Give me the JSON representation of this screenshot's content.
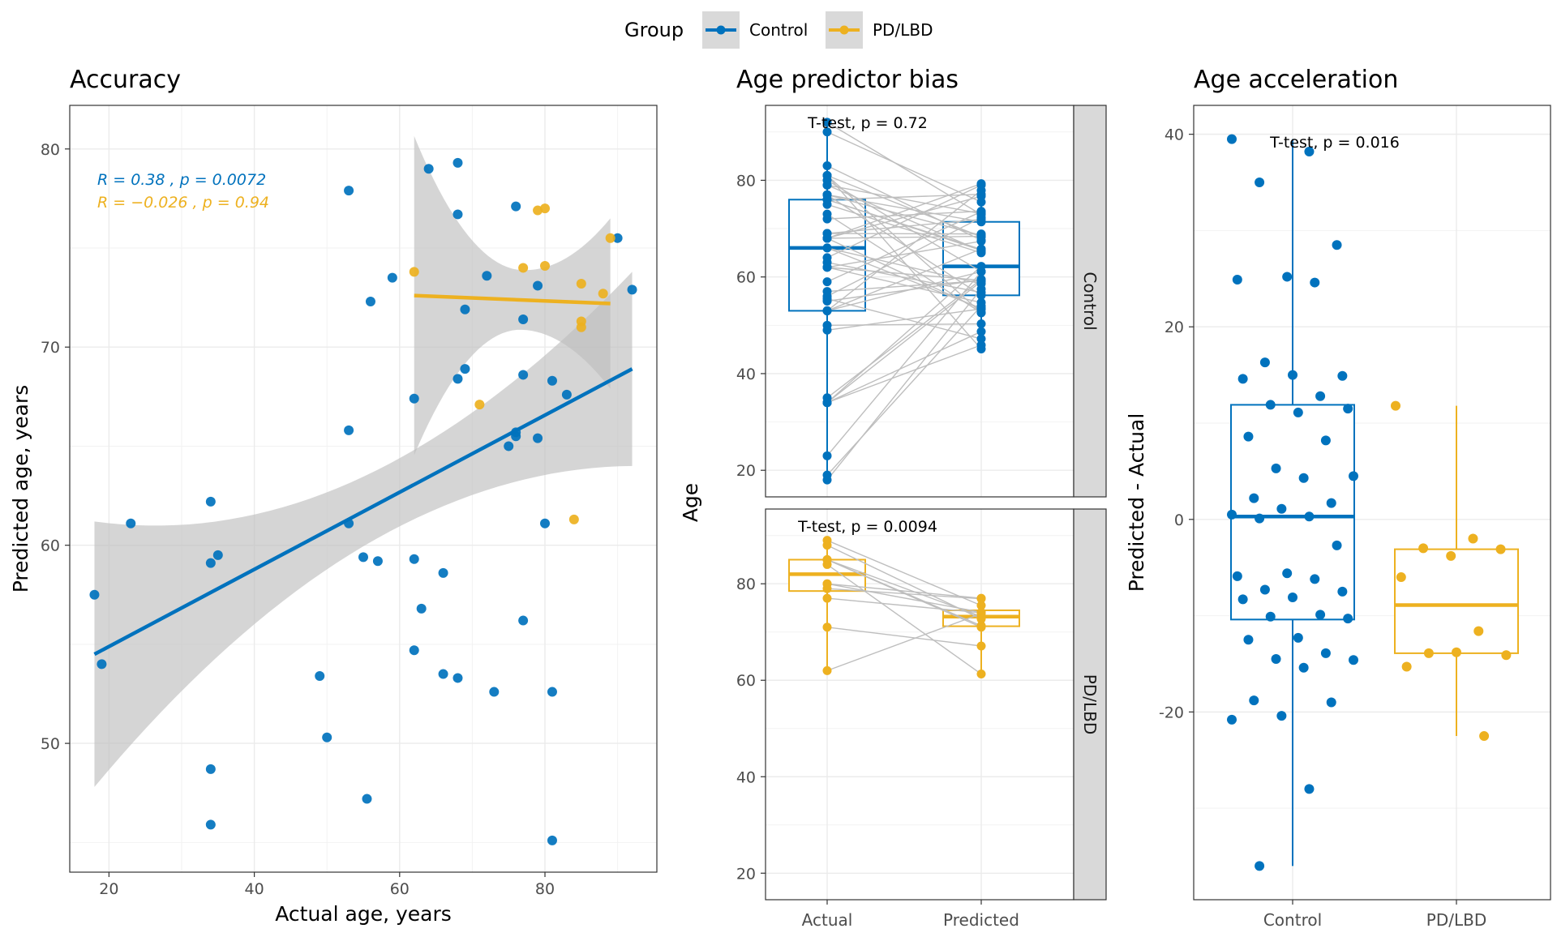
{
  "legend": {
    "title": "Group",
    "items": [
      {
        "label": "Control",
        "color": "#0072BD"
      },
      {
        "label": "PD/LBD",
        "color": "#EDB120"
      }
    ]
  },
  "colors": {
    "control": "#0072BD",
    "pd": "#EDB120",
    "strip": "#D9D9D9",
    "ribbon": "#BEBEBE",
    "pairline": "#BEBEBE"
  },
  "chart_data": [
    {
      "type": "scatter",
      "title": "Accuracy",
      "xlabel": "Actual age, years",
      "ylabel": "Predicted age, years",
      "xlim": [
        14.6,
        95.4
      ],
      "ylim": [
        43.5,
        82.2
      ],
      "xticks": [
        20,
        40,
        60,
        80
      ],
      "yticks": [
        50,
        60,
        70,
        80
      ],
      "grid": true,
      "annotations": [
        {
          "text": "R = 0.38 , p = 0.0072",
          "series": "Control"
        },
        {
          "text": "R = −0.026 , p = 0.94",
          "series": "PD/LBD"
        }
      ],
      "series": [
        {
          "name": "Control",
          "points": [
            [
              18,
              57.5
            ],
            [
              19,
              54
            ],
            [
              23,
              61.1
            ],
            [
              34,
              62.2
            ],
            [
              34,
              59.1
            ],
            [
              35,
              59.5
            ],
            [
              34,
              48.7
            ],
            [
              34,
              45.9
            ],
            [
              49,
              53.4
            ],
            [
              50,
              50.3
            ],
            [
              53,
              77.9
            ],
            [
              53,
              65.8
            ],
            [
              53,
              61.1
            ],
            [
              55,
              59.4
            ],
            [
              55.5,
              47.2
            ],
            [
              56,
              72.3
            ],
            [
              57,
              59.2
            ],
            [
              59,
              73.5
            ],
            [
              62,
              67.4
            ],
            [
              62,
              59.3
            ],
            [
              62,
              54.7
            ],
            [
              63,
              56.8
            ],
            [
              64,
              79
            ],
            [
              66,
              58.6
            ],
            [
              66,
              53.5
            ],
            [
              68,
              79.3
            ],
            [
              68,
              76.7
            ],
            [
              68,
              68.4
            ],
            [
              68,
              53.3
            ],
            [
              69,
              71.9
            ],
            [
              69,
              68.9
            ],
            [
              72,
              73.6
            ],
            [
              73,
              52.6
            ],
            [
              75,
              65
            ],
            [
              76,
              65.7
            ],
            [
              76,
              65.5
            ],
            [
              76,
              77.1
            ],
            [
              77,
              71.4
            ],
            [
              77,
              68.6
            ],
            [
              77,
              56.2
            ],
            [
              79,
              73.1
            ],
            [
              79,
              65.4
            ],
            [
              80,
              61.1
            ],
            [
              81,
              68.3
            ],
            [
              81,
              52.6
            ],
            [
              81,
              45.1
            ],
            [
              83,
              67.6
            ],
            [
              90,
              75.5
            ],
            [
              92,
              72.9
            ]
          ],
          "fit": {
            "x": [
              18,
              92
            ],
            "y": [
              54.5,
              68.9
            ],
            "ribbon_lo": [
              47.8,
              64.0
            ],
            "ribbon_hi": [
              61.2,
              73.8
            ]
          }
        },
        {
          "name": "PD/LBD",
          "points": [
            [
              62,
              73.8
            ],
            [
              71,
              67.1
            ],
            [
              77,
              74
            ],
            [
              79,
              76.9
            ],
            [
              80,
              77
            ],
            [
              80,
              74.1
            ],
            [
              84,
              61.3
            ],
            [
              85,
              73.2
            ],
            [
              85,
              71.3
            ],
            [
              85,
              71
            ],
            [
              88,
              72.7
            ],
            [
              89,
              75.5
            ]
          ],
          "fit": {
            "x": [
              62,
              89
            ],
            "y": [
              72.6,
              72.2
            ],
            "ribbon_lo": [
              64.5,
              68.1
            ],
            "ribbon_hi": [
              80.6,
              76.7
            ]
          }
        }
      ]
    },
    {
      "type": "box",
      "title": "Age predictor bias",
      "ylabel": "Age",
      "categories": [
        "Actual",
        "Predicted"
      ],
      "yticks": [
        20,
        40,
        60,
        80
      ],
      "ylim": [
        14.5,
        95.5
      ],
      "facets": [
        {
          "name": "Control",
          "label": "T-test, p = 0.72",
          "boxes": [
            {
              "category": "Actual",
              "min": 18,
              "q1": 53,
              "median": 66,
              "q3": 76,
              "max": 92
            },
            {
              "category": "Predicted",
              "min": 45,
              "q1": 56.2,
              "median": 62.2,
              "q3": 71.4,
              "max": 79.3
            }
          ],
          "pairs": [
            [
              18,
              57.5
            ],
            [
              19,
              54
            ],
            [
              23,
              61.1
            ],
            [
              34,
              62.2
            ],
            [
              34,
              59.1
            ],
            [
              35,
              59.5
            ],
            [
              34,
              48.7
            ],
            [
              34,
              45.9
            ],
            [
              49,
              53.4
            ],
            [
              50,
              50.3
            ],
            [
              53,
              77.9
            ],
            [
              53,
              65.8
            ],
            [
              53,
              61.1
            ],
            [
              55,
              59.4
            ],
            [
              55.5,
              47.2
            ],
            [
              56,
              72.3
            ],
            [
              57,
              59.2
            ],
            [
              59,
              73.5
            ],
            [
              62,
              67.4
            ],
            [
              62,
              59.3
            ],
            [
              62,
              54.7
            ],
            [
              63,
              56.8
            ],
            [
              64,
              79
            ],
            [
              66,
              58.6
            ],
            [
              66,
              53.5
            ],
            [
              68,
              79.3
            ],
            [
              68,
              76.7
            ],
            [
              68,
              68.4
            ],
            [
              68,
              53.3
            ],
            [
              69,
              71.9
            ],
            [
              69,
              68.9
            ],
            [
              72,
              73.6
            ],
            [
              73,
              52.6
            ],
            [
              75,
              65
            ],
            [
              76,
              65.7
            ],
            [
              76,
              65.5
            ],
            [
              76,
              77.1
            ],
            [
              77,
              71.4
            ],
            [
              77,
              68.6
            ],
            [
              77,
              56.2
            ],
            [
              79,
              73.1
            ],
            [
              79,
              65.4
            ],
            [
              80,
              61.1
            ],
            [
              81,
              68.3
            ],
            [
              81,
              52.6
            ],
            [
              81,
              45.1
            ],
            [
              83,
              67.6
            ],
            [
              90,
              75.5
            ],
            [
              92,
              72.9
            ]
          ]
        },
        {
          "name": "PD/LBD",
          "label": "T-test, p = 0.0094",
          "boxes": [
            {
              "category": "Actual",
              "min": 62,
              "q1": 78.5,
              "median": 82,
              "q3": 85,
              "max": 89
            },
            {
              "category": "Predicted",
              "min": 61.3,
              "q1": 71.2,
              "median": 73.2,
              "q3": 74.5,
              "max": 77
            }
          ],
          "pairs": [
            [
              62,
              73.8
            ],
            [
              71,
              67.1
            ],
            [
              77,
              74
            ],
            [
              79,
              76.9
            ],
            [
              80,
              77
            ],
            [
              80,
              74.1
            ],
            [
              84,
              61.3
            ],
            [
              85,
              73.2
            ],
            [
              85,
              71.3
            ],
            [
              85,
              71
            ],
            [
              88,
              72.7
            ],
            [
              89,
              75.5
            ]
          ]
        }
      ]
    },
    {
      "type": "box",
      "title": "Age acceleration",
      "ylabel": "Predicted - Actual",
      "categories": [
        "Control",
        "PD/LBD"
      ],
      "yticks": [
        -20,
        0,
        20,
        40
      ],
      "ylim": [
        -39.5,
        43
      ],
      "label": "T-test, p = 0.016",
      "boxes": [
        {
          "category": "Control",
          "min": -36,
          "q1": -10.4,
          "median": 0.3,
          "q3": 11.9,
          "max": 39.5
        },
        {
          "category": "PD/LBD",
          "min": -22.5,
          "q1": -13.9,
          "median": -8.9,
          "q3": -3.1,
          "max": 11.8
        }
      ],
      "points": [
        {
          "group": "Control",
          "values": [
            39.5,
            38.2,
            35,
            28.5,
            25.2,
            24.9,
            24.6,
            16.3,
            14.9,
            15,
            14.6,
            12.8,
            11.9,
            11.5,
            11.1,
            8.6,
            8.2,
            5.3,
            4.5,
            4.3,
            2.2,
            1.7,
            1.1,
            0.5,
            0.3,
            0.1,
            -2.7,
            -5.6,
            -5.9,
            -6.2,
            -7.3,
            -7.5,
            -8.1,
            -8.3,
            -9.9,
            -10.1,
            -10.3,
            -12.3,
            -12.5,
            -13.9,
            -14.5,
            -14.6,
            -15.4,
            -18.8,
            -19,
            -20.4,
            -20.8,
            -28,
            -36
          ]
        },
        {
          "group": "PD/LBD",
          "values": [
            11.8,
            -2,
            -3,
            -3.1,
            -3.8,
            -6,
            -11.6,
            -13.9,
            -14.1,
            -13.8,
            -15.3,
            -22.5
          ]
        }
      ]
    }
  ]
}
